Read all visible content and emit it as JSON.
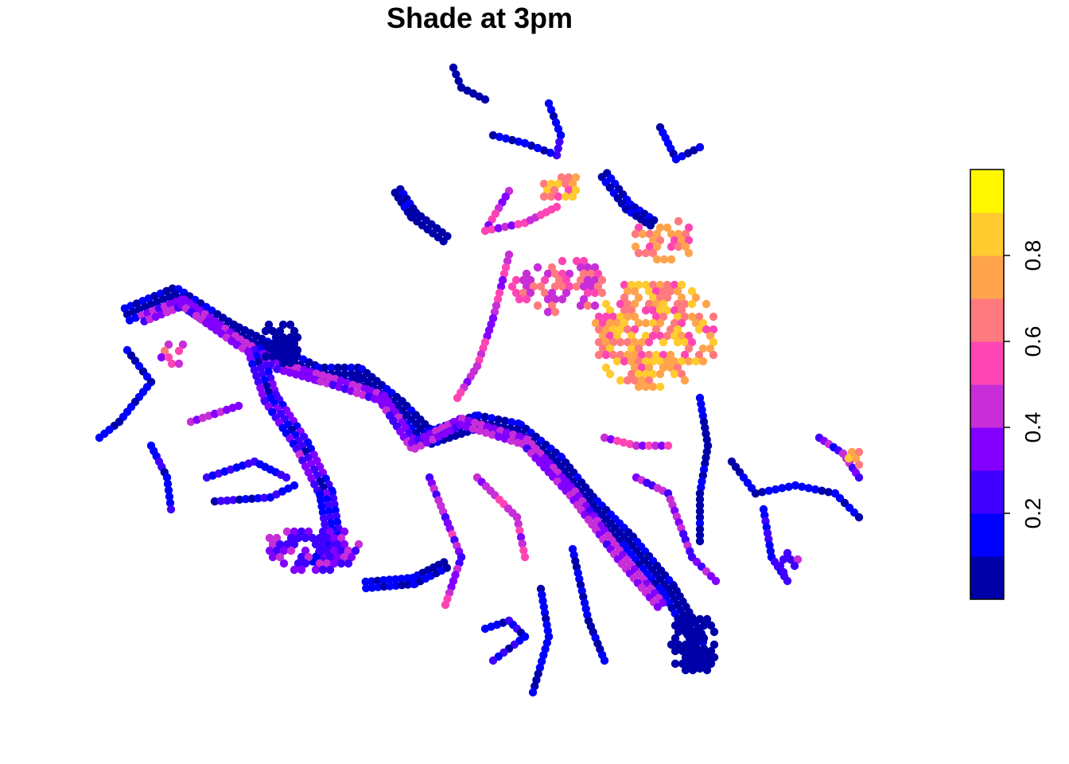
{
  "title": "Shade at 3pm",
  "legend": {
    "tick_labels": [
      "0.2",
      "0.4",
      "0.6",
      "0.8"
    ],
    "tick_values": [
      0.2,
      0.4,
      0.6,
      0.8
    ],
    "range": [
      0,
      1
    ],
    "bins": [
      0,
      0.1,
      0.2,
      0.3,
      0.4,
      0.5,
      0.6,
      0.7,
      0.8,
      0.9,
      1.0
    ],
    "colors": [
      "#0000A8",
      "#0000FF",
      "#3F00FF",
      "#8300FF",
      "#C72ED8",
      "#FF45B4",
      "#FF7A7F",
      "#FFA44D",
      "#FFCB2E",
      "#FFF700"
    ]
  },
  "map_features": {
    "main_river": "shaded channel of low shade values (0-0.2) running from upper-left down to lower-right",
    "high_shade_cluster": "values 0.6-1.0 concentrated in the upper-central area"
  }
}
